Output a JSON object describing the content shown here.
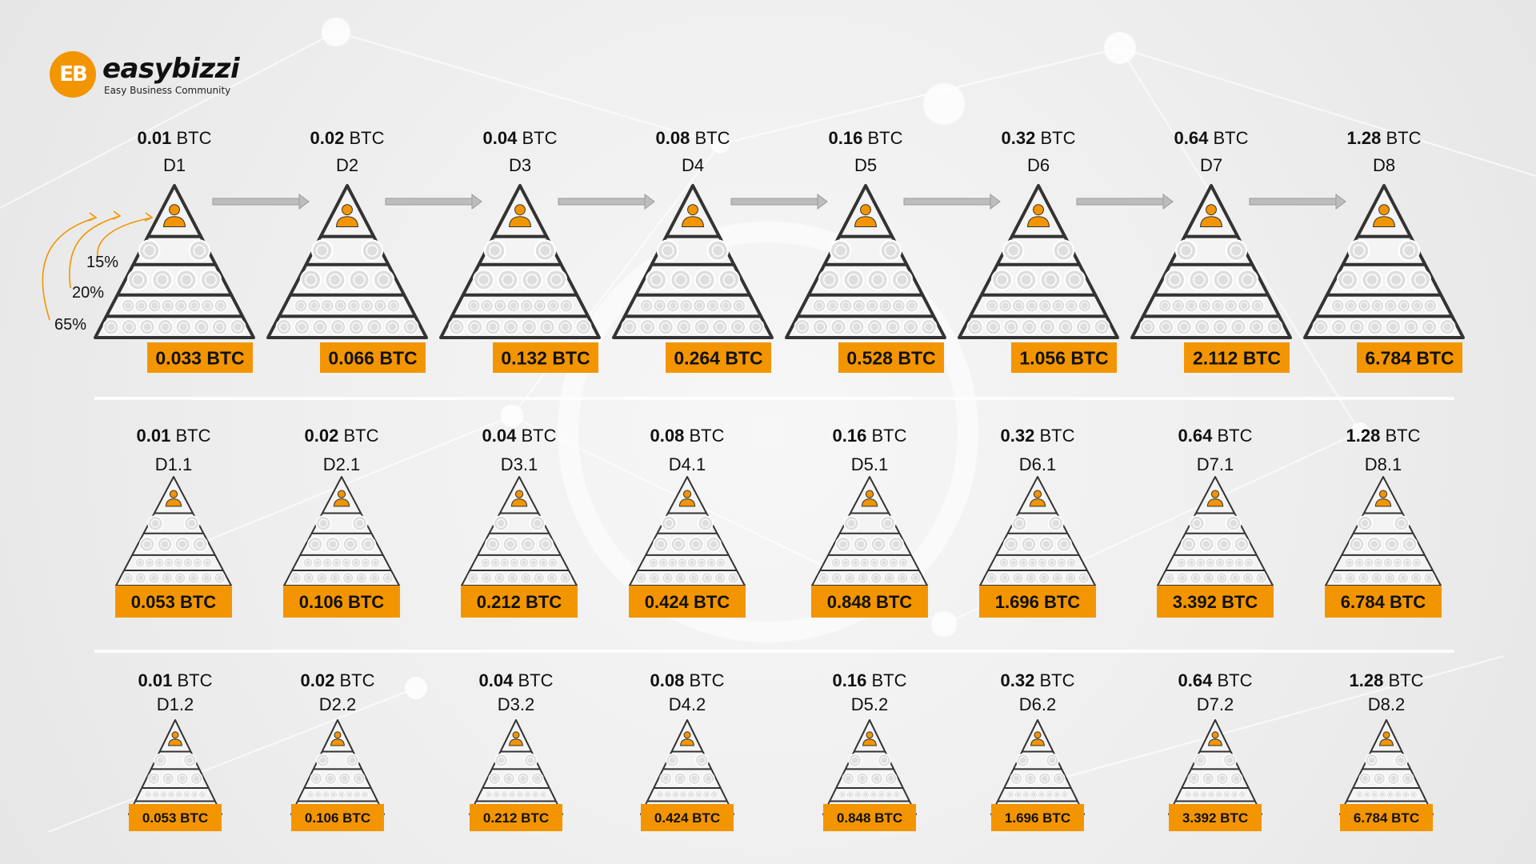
{
  "brand": {
    "name": "easybizzi",
    "tagline": "Easy Business Community",
    "mark": "EB",
    "accent": "#f39500"
  },
  "rows": [
    {
      "items": [
        {
          "price_num": "0.01",
          "unit": "BTC",
          "code": "D1",
          "reward": "0.033 BTC"
        },
        {
          "price_num": "0.02",
          "unit": "BTC",
          "code": "D2",
          "reward": "0.066 BTC"
        },
        {
          "price_num": "0.04",
          "unit": "BTC",
          "code": "D3",
          "reward": "0.132 BTC"
        },
        {
          "price_num": "0.08",
          "unit": "BTC",
          "code": "D4",
          "reward": "0.264 BTC"
        },
        {
          "price_num": "0.16",
          "unit": "BTC",
          "code": "D5",
          "reward": "0.528 BTC"
        },
        {
          "price_num": "0.32",
          "unit": "BTC",
          "code": "D6",
          "reward": "1.056 BTC"
        },
        {
          "price_num": "0.64",
          "unit": "BTC",
          "code": "D7",
          "reward": "2.112 BTC"
        },
        {
          "price_num": "1.28",
          "unit": "BTC",
          "code": "D8",
          "reward": "6.784 BTC"
        }
      ]
    },
    {
      "items": [
        {
          "price_num": "0.01",
          "unit": "BTC",
          "code": "D1.1",
          "reward": "0.053 BTC"
        },
        {
          "price_num": "0.02",
          "unit": "BTC",
          "code": "D2.1",
          "reward": "0.106 BTC"
        },
        {
          "price_num": "0.04",
          "unit": "BTC",
          "code": "D3.1",
          "reward": "0.212 BTC"
        },
        {
          "price_num": "0.08",
          "unit": "BTC",
          "code": "D4.1",
          "reward": "0.424 BTC"
        },
        {
          "price_num": "0.16",
          "unit": "BTC",
          "code": "D5.1",
          "reward": "0.848 BTC"
        },
        {
          "price_num": "0.32",
          "unit": "BTC",
          "code": "D6.1",
          "reward": "1.696 BTC"
        },
        {
          "price_num": "0.64",
          "unit": "BTC",
          "code": "D7.1",
          "reward": "3.392 BTC"
        },
        {
          "price_num": "1.28",
          "unit": "BTC",
          "code": "D8.1",
          "reward": "6.784 BTC"
        }
      ]
    },
    {
      "items": [
        {
          "price_num": "0.01",
          "unit": "BTC",
          "code": "D1.2",
          "reward": "0.053 BTC"
        },
        {
          "price_num": "0.02",
          "unit": "BTC",
          "code": "D2.2",
          "reward": "0.106 BTC"
        },
        {
          "price_num": "0.04",
          "unit": "BTC",
          "code": "D3.2",
          "reward": "0.212 BTC"
        },
        {
          "price_num": "0.08",
          "unit": "BTC",
          "code": "D4.2",
          "reward": "0.424 BTC"
        },
        {
          "price_num": "0.16",
          "unit": "BTC",
          "code": "D5.2",
          "reward": "0.848 BTC"
        },
        {
          "price_num": "0.32",
          "unit": "BTC",
          "code": "D6.2",
          "reward": "1.696 BTC"
        },
        {
          "price_num": "0.64",
          "unit": "BTC",
          "code": "D7.2",
          "reward": "3.392 BTC"
        },
        {
          "price_num": "1.28",
          "unit": "BTC",
          "code": "D8.2",
          "reward": "6.784 BTC"
        }
      ]
    }
  ],
  "split_labels": [
    "15%",
    "20%",
    "65%"
  ],
  "colors": {
    "accent": "#f39500",
    "outline": "#333333",
    "coin": "#dedede",
    "arrow": "#bdbdbd",
    "text": "#111111"
  },
  "icons": {
    "person": "person-icon",
    "coin": "eb-coin-icon",
    "arrow": "arrow-right-icon"
  }
}
